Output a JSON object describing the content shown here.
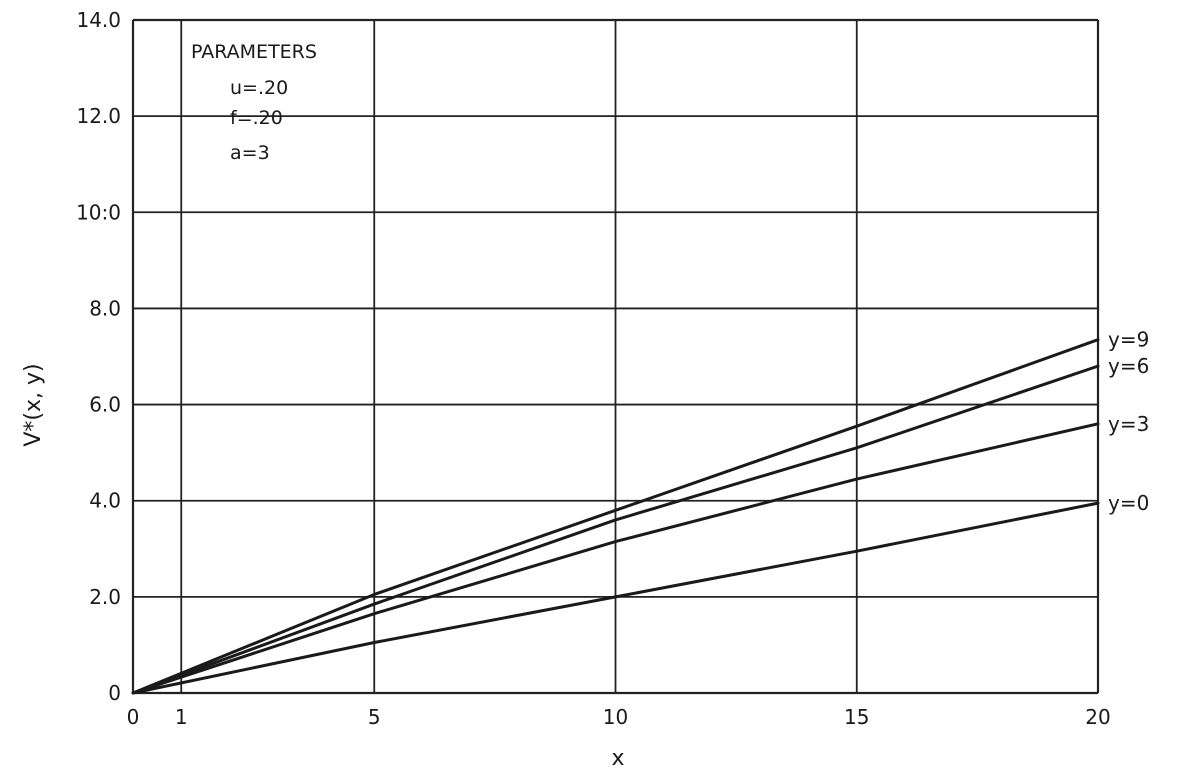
{
  "chart_data": {
    "type": "line",
    "title": "",
    "xlabel": "x",
    "ylabel": "V*(x, y)",
    "xlim": [
      0,
      20
    ],
    "ylim": [
      0,
      14
    ],
    "grid": true,
    "x_ticks": [
      0,
      1,
      5,
      10,
      15,
      20
    ],
    "x_tick_labels": [
      "0",
      "1",
      "5",
      "10",
      "15",
      "20"
    ],
    "y_ticks": [
      0,
      2,
      4,
      6,
      8,
      10,
      12,
      14
    ],
    "y_tick_labels": [
      "0",
      "2.0",
      "4.0",
      "6.0",
      "8.0",
      "10:0",
      "12.0",
      "14.0"
    ],
    "annotation": {
      "heading": "PARAMETERS",
      "lines": [
        "u=.20",
        "f=.20",
        "a=3"
      ]
    },
    "series": [
      {
        "name": "y=9",
        "x": [
          0,
          5,
          10,
          15,
          20
        ],
        "y": [
          0,
          2.05,
          3.8,
          5.55,
          7.35
        ]
      },
      {
        "name": "y=6",
        "x": [
          0,
          5,
          10,
          15,
          20
        ],
        "y": [
          0,
          1.85,
          3.6,
          5.1,
          6.8
        ]
      },
      {
        "name": "y=3",
        "x": [
          0,
          5,
          10,
          15,
          20
        ],
        "y": [
          0,
          1.65,
          3.15,
          4.45,
          5.6
        ]
      },
      {
        "name": "y=0",
        "x": [
          0,
          5,
          10,
          15,
          20
        ],
        "y": [
          0,
          1.05,
          2.0,
          2.95,
          3.95
        ]
      }
    ]
  }
}
